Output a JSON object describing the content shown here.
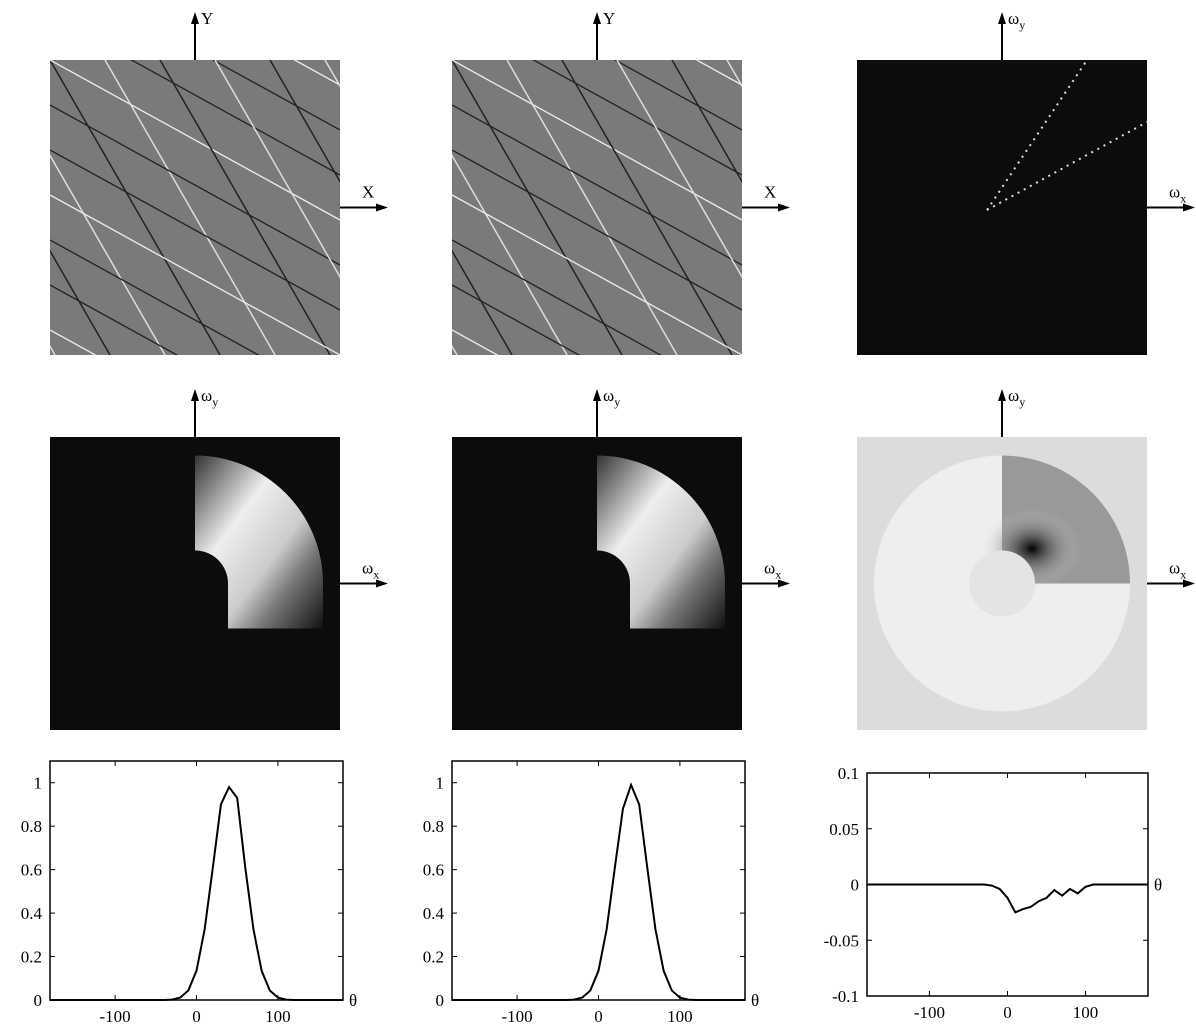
{
  "image_panels": [
    {
      "y_label": {
        "base": "Y"
      },
      "x_label": {
        "base": "X"
      }
    },
    {
      "y_label": {
        "base": "Y"
      },
      "x_label": {
        "base": "X"
      }
    },
    {
      "y_label": {
        "base": "ω",
        "sub": "y"
      },
      "x_label": {
        "base": "ω",
        "sub": "x"
      }
    },
    {
      "y_label": {
        "base": "ω",
        "sub": "y"
      },
      "x_label": {
        "base": "ω",
        "sub": "x"
      }
    },
    {
      "y_label": {
        "base": "ω",
        "sub": "y"
      },
      "x_label": {
        "base": "ω",
        "sub": "x"
      }
    },
    {
      "y_label": {
        "base": "ω",
        "sub": "y"
      },
      "x_label": {
        "base": "ω",
        "sub": "x"
      }
    }
  ],
  "chart_data": [
    {
      "type": "line",
      "x_label": "θ",
      "xlim": [
        -180,
        180
      ],
      "xticks": [
        -100,
        0,
        100
      ],
      "ylim": [
        0,
        1.1
      ],
      "yticks": [
        0,
        0.2,
        0.4,
        0.6,
        0.8,
        1
      ],
      "x": [
        -180,
        -170,
        -160,
        -150,
        -140,
        -130,
        -120,
        -110,
        -100,
        -90,
        -80,
        -70,
        -60,
        -50,
        -40,
        -30,
        -20,
        -10,
        0,
        10,
        20,
        30,
        40,
        50,
        60,
        70,
        80,
        90,
        100,
        110,
        120,
        130,
        140,
        150,
        160,
        170,
        180
      ],
      "series": [
        {
          "color": "#000000",
          "values": [
            0,
            0,
            0,
            0,
            0,
            0,
            0,
            0,
            0,
            0,
            0,
            0,
            0,
            0,
            0,
            0.002,
            0.011,
            0.044,
            0.135,
            0.325,
            0.607,
            0.9,
            0.98,
            0.93,
            0.607,
            0.325,
            0.135,
            0.044,
            0.011,
            0.002,
            0,
            0,
            0,
            0,
            0,
            0,
            0
          ]
        }
      ]
    },
    {
      "type": "line",
      "x_label": "θ",
      "xlim": [
        -180,
        180
      ],
      "xticks": [
        -100,
        0,
        100
      ],
      "ylim": [
        0,
        1.1
      ],
      "yticks": [
        0,
        0.2,
        0.4,
        0.6,
        0.8,
        1
      ],
      "x": [
        -180,
        -170,
        -160,
        -150,
        -140,
        -130,
        -120,
        -110,
        -100,
        -90,
        -80,
        -70,
        -60,
        -50,
        -40,
        -30,
        -20,
        -10,
        0,
        10,
        20,
        30,
        40,
        50,
        60,
        70,
        80,
        90,
        100,
        110,
        120,
        130,
        140,
        150,
        160,
        170,
        180
      ],
      "series": [
        {
          "color": "#000000",
          "values": [
            0,
            0,
            0,
            0,
            0,
            0,
            0,
            0,
            0,
            0,
            0,
            0,
            0,
            0,
            0,
            0.002,
            0.011,
            0.044,
            0.135,
            0.325,
            0.607,
            0.88,
            0.99,
            0.9,
            0.607,
            0.325,
            0.135,
            0.044,
            0.011,
            0.002,
            0,
            0,
            0,
            0,
            0,
            0,
            0
          ]
        }
      ]
    },
    {
      "type": "line",
      "x_label": "θ",
      "xlim": [
        -180,
        180
      ],
      "xticks": [
        -100,
        0,
        100
      ],
      "ylim": [
        -0.1,
        0.1
      ],
      "yticks": [
        -0.1,
        -0.05,
        0,
        0.05,
        0.1
      ],
      "x": [
        -180,
        -170,
        -160,
        -150,
        -140,
        -130,
        -120,
        -110,
        -100,
        -90,
        -80,
        -70,
        -60,
        -50,
        -40,
        -30,
        -20,
        -10,
        0,
        10,
        20,
        30,
        40,
        50,
        60,
        70,
        80,
        90,
        100,
        110,
        120,
        130,
        140,
        150,
        160,
        170,
        180
      ],
      "series": [
        {
          "color": "#000000",
          "values": [
            0,
            0,
            0,
            0,
            0,
            0,
            0,
            0,
            0,
            0,
            0,
            0,
            0,
            0,
            0,
            0,
            -0.001,
            -0.004,
            -0.012,
            -0.025,
            -0.022,
            -0.02,
            -0.015,
            -0.012,
            -0.005,
            -0.01,
            -0.004,
            -0.008,
            -0.002,
            0,
            0,
            0,
            0,
            0,
            0,
            0,
            0
          ]
        }
      ]
    }
  ]
}
